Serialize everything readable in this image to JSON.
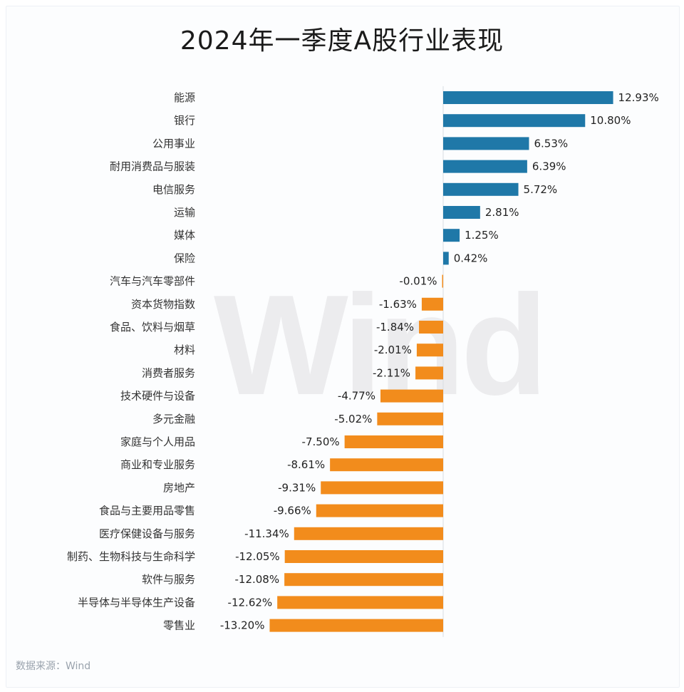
{
  "chart_data": {
    "type": "bar",
    "orientation": "horizontal",
    "title": "2024年一季度A股行业表现",
    "categories": [
      "能源",
      "银行",
      "公用事业",
      "耐用消费品与服装",
      "电信服务",
      "运输",
      "媒体",
      "保险",
      "汽车与汽车零部件",
      "资本货物指数",
      "食品、饮料与烟草",
      "材料",
      "消费者服务",
      "技术硬件与设备",
      "多元金融",
      "家庭与个人用品",
      "商业和专业服务",
      "房地产",
      "食品与主要用品零售",
      "医疗保健设备与服务",
      "制药、生物科技与生命科学",
      "软件与服务",
      "半导体与半导体生产设备",
      "零售业"
    ],
    "values": [
      12.93,
      10.8,
      6.53,
      6.39,
      5.72,
      2.81,
      1.25,
      0.42,
      -0.01,
      -1.63,
      -1.84,
      -2.01,
      -2.11,
      -4.77,
      -5.02,
      -7.5,
      -8.61,
      -9.31,
      -9.66,
      -11.34,
      -12.05,
      -12.08,
      -12.62,
      -13.2
    ],
    "value_labels": [
      "12.93%",
      "10.80%",
      "6.53%",
      "6.39%",
      "5.72%",
      "2.81%",
      "1.25%",
      "0.42%",
      "-0.01%",
      "-1.63%",
      "-1.84%",
      "-2.01%",
      "-2.11%",
      "-4.77%",
      "-5.02%",
      "-7.50%",
      "-8.61%",
      "-9.31%",
      "-9.66%",
      "-11.34%",
      "-12.05%",
      "-12.08%",
      "-12.62%",
      "-13.20%"
    ],
    "unit": "%",
    "xlim": [
      -13.2,
      12.93
    ],
    "grid": false,
    "legend": "none",
    "colors": {
      "positive": "#1f78a8",
      "negative": "#f28c1c"
    }
  },
  "source_note": "数据来源：Wind",
  "watermark": "Wind"
}
